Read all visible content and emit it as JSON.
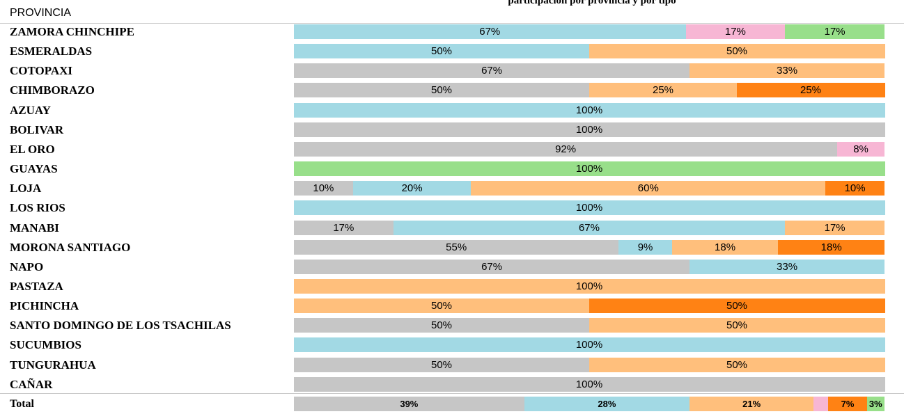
{
  "header_label": "PROVINCIA",
  "title": "participación por provincia y por tipo",
  "colors": {
    "gray": "#c6c6c6",
    "blue": "#a2d9e4",
    "orange_light": "#ffbf7c",
    "orange_dark": "#ff8214",
    "pink": "#f7b6d4",
    "green": "#98df8a"
  },
  "chart_data": {
    "type": "bar",
    "orientation": "horizontal",
    "stacked": "percent",
    "xlim": [
      0,
      100
    ],
    "categories": [
      "ZAMORA CHINCHIPE",
      "ESMERALDAS",
      "COTOPAXI",
      "CHIMBORAZO",
      "AZUAY",
      "BOLIVAR",
      "EL ORO",
      "GUAYAS",
      "LOJA",
      "LOS RIOS",
      "MANABI",
      "MORONA SANTIAGO",
      "NAPO",
      "PASTAZA",
      "PICHINCHA",
      "SANTO DOMINGO DE LOS TSACHILAS",
      "SUCUMBIOS",
      "TUNGURAHUA",
      "CAÑAR",
      "Total"
    ],
    "series_colors": [
      "#c6c6c6",
      "#a2d9e4",
      "#ffbf7c",
      "#ff8214",
      "#f7b6d4",
      "#98df8a"
    ],
    "rows": [
      {
        "segments": [
          {
            "color": 1,
            "value": 67,
            "label": "67%"
          },
          {
            "color": 4,
            "value": 17,
            "label": "17%"
          },
          {
            "color": 5,
            "value": 17,
            "label": "17%"
          }
        ]
      },
      {
        "segments": [
          {
            "color": 1,
            "value": 50,
            "label": "50%"
          },
          {
            "color": 2,
            "value": 50,
            "label": "50%"
          }
        ]
      },
      {
        "segments": [
          {
            "color": 0,
            "value": 67,
            "label": "67%"
          },
          {
            "color": 2,
            "value": 33,
            "label": "33%"
          }
        ]
      },
      {
        "segments": [
          {
            "color": 0,
            "value": 50,
            "label": "50%"
          },
          {
            "color": 2,
            "value": 25,
            "label": "25%"
          },
          {
            "color": 3,
            "value": 25,
            "label": "25%"
          }
        ]
      },
      {
        "segments": [
          {
            "color": 1,
            "value": 100,
            "label": "100%"
          }
        ]
      },
      {
        "segments": [
          {
            "color": 0,
            "value": 100,
            "label": "100%"
          }
        ]
      },
      {
        "segments": [
          {
            "color": 0,
            "value": 92,
            "label": "92%"
          },
          {
            "color": 4,
            "value": 8,
            "label": "8%"
          }
        ]
      },
      {
        "segments": [
          {
            "color": 5,
            "value": 100,
            "label": "100%"
          }
        ]
      },
      {
        "segments": [
          {
            "color": 0,
            "value": 10,
            "label": "10%"
          },
          {
            "color": 1,
            "value": 20,
            "label": "20%"
          },
          {
            "color": 2,
            "value": 60,
            "label": "60%"
          },
          {
            "color": 3,
            "value": 10,
            "label": "10%"
          }
        ]
      },
      {
        "segments": [
          {
            "color": 1,
            "value": 100,
            "label": "100%"
          }
        ]
      },
      {
        "segments": [
          {
            "color": 0,
            "value": 17,
            "label": "17%"
          },
          {
            "color": 1,
            "value": 67,
            "label": "67%"
          },
          {
            "color": 2,
            "value": 17,
            "label": "17%"
          }
        ]
      },
      {
        "segments": [
          {
            "color": 0,
            "value": 55,
            "label": "55%"
          },
          {
            "color": 1,
            "value": 9,
            "label": "9%"
          },
          {
            "color": 2,
            "value": 18,
            "label": "18%"
          },
          {
            "color": 3,
            "value": 18,
            "label": "18%"
          }
        ]
      },
      {
        "segments": [
          {
            "color": 0,
            "value": 67,
            "label": "67%"
          },
          {
            "color": 1,
            "value": 33,
            "label": "33%"
          }
        ]
      },
      {
        "segments": [
          {
            "color": 2,
            "value": 100,
            "label": "100%"
          }
        ]
      },
      {
        "segments": [
          {
            "color": 2,
            "value": 50,
            "label": "50%"
          },
          {
            "color": 3,
            "value": 50,
            "label": "50%"
          }
        ]
      },
      {
        "segments": [
          {
            "color": 0,
            "value": 50,
            "label": "50%"
          },
          {
            "color": 2,
            "value": 50,
            "label": "50%"
          }
        ]
      },
      {
        "segments": [
          {
            "color": 1,
            "value": 100,
            "label": "100%"
          }
        ]
      },
      {
        "segments": [
          {
            "color": 0,
            "value": 50,
            "label": "50%"
          },
          {
            "color": 2,
            "value": 50,
            "label": "50%"
          }
        ]
      },
      {
        "segments": [
          {
            "color": 0,
            "value": 100,
            "label": "100%"
          }
        ]
      },
      {
        "segments": [
          {
            "color": 0,
            "value": 39,
            "label": "39%"
          },
          {
            "color": 1,
            "value": 28,
            "label": "28%"
          },
          {
            "color": 2,
            "value": 21,
            "label": "21%"
          },
          {
            "color": 4,
            "value": 2.5,
            "label": ""
          },
          {
            "color": 3,
            "value": 6.5,
            "label": "7%"
          },
          {
            "color": 5,
            "value": 3,
            "label": "3%"
          }
        ]
      }
    ]
  }
}
